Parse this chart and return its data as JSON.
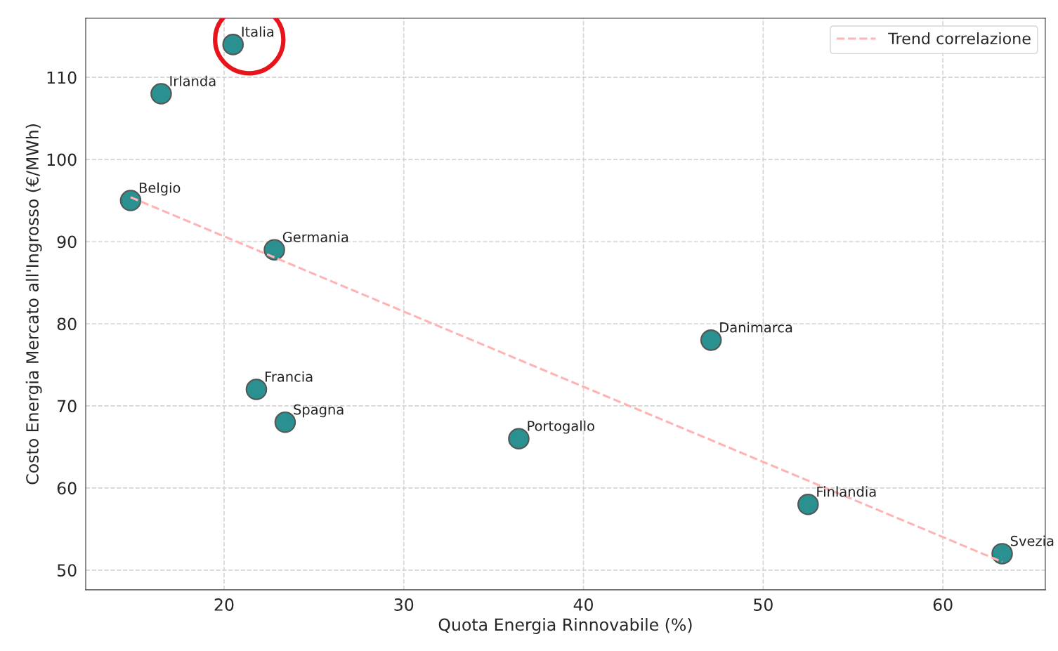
{
  "chart_data": {
    "type": "scatter",
    "xlabel": "Quota Energia Rinnovabile (%)",
    "ylabel": "Costo Energia Mercato all'Ingrosso (€/MWh)",
    "xlim": [
      12.3,
      65.7
    ],
    "ylim": [
      47.6,
      117.2
    ],
    "xticks": [
      20,
      30,
      40,
      50,
      60
    ],
    "yticks": [
      50,
      60,
      70,
      80,
      90,
      100,
      110
    ],
    "grid": true,
    "legend": "top right",
    "series": [
      {
        "color": "#2a9090",
        "marker": "circle",
        "x": [
          20.5,
          16.5,
          14.8,
          22.8,
          47.1,
          21.8,
          23.4,
          36.4,
          52.5,
          63.3
        ],
        "values": [
          114,
          108,
          95,
          89,
          78,
          72,
          68,
          66,
          58,
          52
        ]
      },
      {
        "type": "line",
        "name": "Trend correlazione",
        "color": "#ffb3b3",
        "line_style": "dashed",
        "marker": "none",
        "x": [
          14.8,
          63.3
        ],
        "values": [
          95.4,
          51
        ]
      }
    ],
    "annotations": [
      {
        "text": "Italia",
        "x": 20.5,
        "y": 114
      },
      {
        "text": "Irlanda",
        "x": 16.5,
        "y": 108
      },
      {
        "text": "Belgio",
        "x": 14.8,
        "y": 95
      },
      {
        "text": "Germania",
        "x": 22.8,
        "y": 89
      },
      {
        "text": "Danimarca",
        "x": 47.1,
        "y": 78
      },
      {
        "text": "Francia",
        "x": 21.8,
        "y": 72
      },
      {
        "text": "Spagna",
        "x": 23.4,
        "y": 68
      },
      {
        "text": "Portogallo",
        "x": 36.4,
        "y": 66
      },
      {
        "text": "Finlandia",
        "x": 52.5,
        "y": 58
      },
      {
        "text": "Svezia",
        "x": 63.3,
        "y": 52
      }
    ]
  }
}
